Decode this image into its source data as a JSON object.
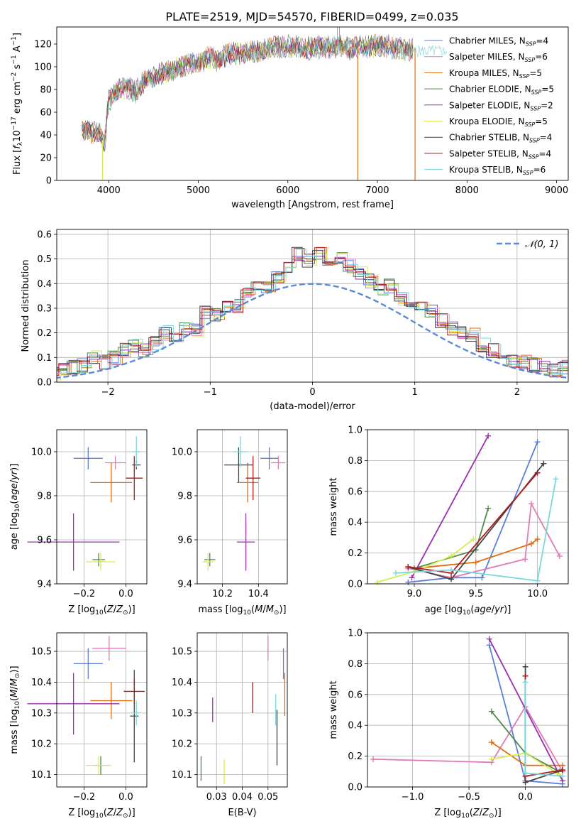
{
  "figure_title": "PLATE=2519, MJD=54570, FIBERID=0499, z=0.035",
  "colors": {
    "Chabrier MILES": "#5b7fd6",
    "Salpeter MILES": "#e07bb5",
    "Kroupa MILES": "#e06d10",
    "Chabrier ELODIE": "#4e8a4a",
    "Salpeter ELODIE": "#9b2fb0",
    "Kroupa ELODIE": "#d5ec55",
    "Chabrier STELIB": "#444444",
    "Salpeter STELIB": "#b01a1a",
    "Kroupa STELIB": "#7ad8dd",
    "normal": "#5b8ad6"
  },
  "chart_data": [
    {
      "id": "spectrum",
      "type": "line",
      "title": "PLATE=2519, MJD=54570, FIBERID=0499, z=0.035",
      "xlabel": "wavelength [Angstrom, rest frame]",
      "ylabel": "Flux [f_λ 10^-17 erg cm^-2 s^-1 A^-1]",
      "xlim": [
        3420,
        9130
      ],
      "ylim": [
        0,
        135
      ],
      "xticks": [
        "4000",
        "5000",
        "6000",
        "7000",
        "8000",
        "9000"
      ],
      "yticks": [
        "0",
        "20",
        "40",
        "60",
        "80",
        "100",
        "120"
      ],
      "legend": "right",
      "series": [
        {
          "name": "Chabrier MILES, N_SSP=4"
        },
        {
          "name": "Salpeter MILES, N_SSP=6"
        },
        {
          "name": "Kroupa MILES, N_SSP=5"
        },
        {
          "name": "Chabrier ELODIE, N_SSP=5"
        },
        {
          "name": "Salpeter ELODIE, N_SSP=2"
        },
        {
          "name": "Kroupa ELODIE, N_SSP=5"
        },
        {
          "name": "Chabrier STELIB, N_SSP=4"
        },
        {
          "name": "Salpeter STELIB, N_SSP=4"
        },
        {
          "name": "Kroupa STELIB, N_SSP=6"
        }
      ],
      "continuum": {
        "x": [
          3700,
          3800,
          3900,
          3950,
          4000,
          4100,
          4200,
          4300,
          4400,
          4500,
          4600,
          4700,
          4800,
          4900,
          5000,
          5100,
          5200,
          5300,
          5400,
          5500,
          5600,
          5700,
          5800,
          5900,
          6000,
          6100,
          6200,
          6300,
          6400,
          6500,
          6600,
          6700,
          6800,
          6900,
          7000,
          7100,
          7200,
          7300,
          7400
        ],
        "y": [
          45,
          42,
          44,
          30,
          70,
          80,
          82,
          78,
          88,
          90,
          95,
          96,
          100,
          102,
          104,
          108,
          106,
          110,
          112,
          112,
          113,
          114,
          116,
          117,
          118,
          117,
          116,
          117,
          118,
          117,
          118,
          116,
          117,
          118,
          119,
          118,
          116,
          115,
          116
        ]
      },
      "dropouts": [
        3930,
        6780,
        7420
      ],
      "halpha_peak": {
        "x": 6563,
        "y": 140
      }
    },
    {
      "id": "residuals",
      "type": "bar",
      "xlabel": "(data-model)/error",
      "ylabel": "Normed distribution",
      "xlim": [
        -2.5,
        2.5
      ],
      "ylim": [
        0,
        0.62
      ],
      "xticks": [
        "−2",
        "−1",
        "0",
        "1",
        "2"
      ],
      "yticks": [
        "0.0",
        "0.1",
        "0.2",
        "0.3",
        "0.4",
        "0.5",
        "0.6"
      ],
      "legend_label": "N(0,1)",
      "legend": "top-right",
      "bin_width": 0.1,
      "envelope": [
        0.02,
        0.03,
        0.04,
        0.05,
        0.03,
        0.05,
        0.06,
        0.07,
        0.1,
        0.08,
        0.1,
        0.13,
        0.15,
        0.13,
        0.16,
        0.2,
        0.18,
        0.22,
        0.21,
        0.28,
        0.27,
        0.3,
        0.31,
        0.37,
        0.4,
        0.38,
        0.42,
        0.47,
        0.52,
        0.49,
        0.52,
        0.5,
        0.51,
        0.47,
        0.44,
        0.41,
        0.37,
        0.39,
        0.34,
        0.3,
        0.32,
        0.29,
        0.25,
        0.22,
        0.2,
        0.19,
        0.15,
        0.13,
        0.11,
        0.09,
        0.08,
        0.07,
        0.06,
        0.05,
        0.06,
        0.05,
        0.04,
        0.04,
        0.03,
        0.03
      ]
    },
    {
      "id": "age_vs_Z",
      "type": "scatter",
      "xlabel": "Z [log10(Z/Z☉)]",
      "ylabel": "age [log10(age/yr)]",
      "xlim": [
        -0.33,
        0.1
      ],
      "ylim": [
        9.4,
        10.1
      ],
      "xticks": [
        "−0.2",
        "0.0"
      ],
      "yticks": [
        "9.4",
        "9.6",
        "9.8",
        "10.0"
      ],
      "points": [
        {
          "model": "Chabrier MILES",
          "x": -0.18,
          "xe": 0.07,
          "y": 9.97,
          "ye": 0.05
        },
        {
          "model": "Salpeter MILES",
          "x": -0.05,
          "xe": 0.05,
          "y": 9.95,
          "ye": 0.03
        },
        {
          "model": "Kroupa MILES",
          "x": -0.07,
          "xe": 0.1,
          "y": 9.86,
          "ye": 0.09
        },
        {
          "model": "Chabrier ELODIE",
          "x": -0.13,
          "xe": 0.03,
          "y": 9.51,
          "ye": 0.03
        },
        {
          "model": "Salpeter ELODIE",
          "x": -0.25,
          "xe": 0.22,
          "y": 9.59,
          "ye": 0.13
        },
        {
          "model": "Kroupa ELODIE",
          "x": -0.12,
          "xe": 0.07,
          "y": 9.5,
          "ye": 0.04
        },
        {
          "model": "Chabrier STELIB",
          "x": 0.05,
          "xe": 0.02,
          "y": 9.94,
          "ye": 0.02
        },
        {
          "model": "Salpeter STELIB",
          "x": 0.04,
          "xe": 0.04,
          "y": 9.88,
          "ye": 0.1
        },
        {
          "model": "Kroupa STELIB",
          "x": 0.05,
          "xe": 0.02,
          "y": 10.0,
          "ye": 0.07
        }
      ]
    },
    {
      "id": "age_vs_mass",
      "type": "scatter",
      "xlabel": "mass [log10(M/M☉)]",
      "xlim": [
        10.06,
        10.56
      ],
      "ylim": [
        9.4,
        10.1
      ],
      "xticks": [
        "10.2",
        "10.4"
      ],
      "yticks": [
        "9.4",
        "9.6",
        "9.8",
        "10.0"
      ],
      "points": [
        {
          "model": "Chabrier MILES",
          "x": 10.46,
          "xe": 0.05,
          "y": 9.97,
          "ye": 0.05
        },
        {
          "model": "Salpeter MILES",
          "x": 10.51,
          "xe": 0.04,
          "y": 9.95,
          "ye": 0.03
        },
        {
          "model": "Kroupa MILES",
          "x": 10.34,
          "xe": 0.06,
          "y": 9.86,
          "ye": 0.09
        },
        {
          "model": "Chabrier ELODIE",
          "x": 10.13,
          "xe": 0.03,
          "y": 9.51,
          "ye": 0.03
        },
        {
          "model": "Salpeter ELODIE",
          "x": 10.33,
          "xe": 0.05,
          "y": 9.59,
          "ye": 0.13
        },
        {
          "model": "Kroupa ELODIE",
          "x": 10.12,
          "xe": 0.03,
          "y": 9.5,
          "ye": 0.04
        },
        {
          "model": "Chabrier STELIB",
          "x": 10.29,
          "xe": 0.08,
          "y": 9.94,
          "ye": 0.08
        },
        {
          "model": "Salpeter STELIB",
          "x": 10.37,
          "xe": 0.04,
          "y": 9.88,
          "ye": 0.1
        },
        {
          "model": "Kroupa STELIB",
          "x": 10.3,
          "xe": 0.04,
          "y": 10.0,
          "ye": 0.07
        }
      ]
    },
    {
      "id": "weight_vs_age",
      "type": "line",
      "xlabel": "age [log10(age/yr)]",
      "ylabel": "mass weight",
      "xlim": [
        8.62,
        10.25
      ],
      "ylim": [
        0,
        1.0
      ],
      "xticks": [
        "9.0",
        "9.5",
        "10.0"
      ],
      "yticks": [
        "0.0",
        "0.2",
        "0.4",
        "0.6",
        "0.8",
        "1.0"
      ],
      "series": [
        {
          "model": "Chabrier MILES",
          "x": [
            8.95,
            9.3,
            9.55,
            10.0
          ],
          "y": [
            0.01,
            0.04,
            0.04,
            0.92
          ]
        },
        {
          "model": "Salpeter MILES",
          "x": [
            8.95,
            9.3,
            9.9,
            9.95,
            10.18
          ],
          "y": [
            0.1,
            0.04,
            0.16,
            0.52,
            0.18
          ]
        },
        {
          "model": "Kroupa MILES",
          "x": [
            9.0,
            9.5,
            9.95,
            10.0
          ],
          "y": [
            0.1,
            0.14,
            0.26,
            0.29
          ]
        },
        {
          "model": "Chabrier ELODIE",
          "x": [
            9.0,
            9.5,
            9.6
          ],
          "y": [
            0.1,
            0.22,
            0.49
          ]
        },
        {
          "model": "Salpeter ELODIE",
          "x": [
            8.98,
            9.6
          ],
          "y": [
            0.04,
            0.96
          ]
        },
        {
          "model": "Kroupa ELODIE",
          "x": [
            8.7,
            9.0,
            9.3,
            9.48
          ],
          "y": [
            0.01,
            0.08,
            0.18,
            0.29
          ]
        },
        {
          "model": "Chabrier STELIB",
          "x": [
            8.95,
            9.3,
            10.05
          ],
          "y": [
            0.11,
            0.03,
            0.78
          ]
        },
        {
          "model": "Salpeter STELIB",
          "x": [
            8.95,
            9.3,
            10.0
          ],
          "y": [
            0.11,
            0.07,
            0.72
          ]
        },
        {
          "model": "Kroupa STELIB",
          "x": [
            8.85,
            9.3,
            10.0,
            10.15
          ],
          "y": [
            0.07,
            0.09,
            0.02,
            0.68
          ]
        }
      ]
    },
    {
      "id": "mass_vs_Z",
      "type": "scatter",
      "xlabel": "Z [log10(Z/Z☉)]",
      "ylabel": "mass [log10(M/M☉)]",
      "xlim": [
        -0.33,
        0.1
      ],
      "ylim": [
        10.06,
        10.56
      ],
      "xticks": [
        "−0.2",
        "0.0"
      ],
      "yticks": [
        "10.1",
        "10.2",
        "10.3",
        "10.4",
        "10.5"
      ],
      "points": [
        {
          "model": "Chabrier MILES",
          "x": -0.18,
          "xe": 0.07,
          "y": 10.46,
          "ye": 0.05
        },
        {
          "model": "Salpeter MILES",
          "x": -0.08,
          "xe": 0.08,
          "y": 10.51,
          "ye": 0.04
        },
        {
          "model": "Kroupa MILES",
          "x": -0.07,
          "xe": 0.1,
          "y": 10.34,
          "ye": 0.06
        },
        {
          "model": "Chabrier ELODIE",
          "x": -0.12,
          "xe": 0.03,
          "y": 10.13,
          "ye": 0.03
        },
        {
          "model": "Salpeter ELODIE",
          "x": -0.25,
          "xe": 0.22,
          "y": 10.33,
          "ye": 0.1
        },
        {
          "model": "Kroupa ELODIE",
          "x": -0.13,
          "xe": 0.06,
          "y": 10.13,
          "ye": 0.03
        },
        {
          "model": "Chabrier STELIB",
          "x": 0.04,
          "xe": 0.02,
          "y": 10.29,
          "ye": 0.15
        },
        {
          "model": "Salpeter STELIB",
          "x": 0.04,
          "xe": 0.05,
          "y": 10.37,
          "ye": 0.04
        },
        {
          "model": "Kroupa STELIB",
          "x": 0.05,
          "xe": 0.02,
          "y": 10.3,
          "ye": 0.04
        }
      ]
    },
    {
      "id": "mass_vs_ebv",
      "type": "scatter",
      "xlabel": "E(B-V)",
      "xlim": [
        0.0225,
        0.0575
      ],
      "ylim": [
        10.06,
        10.56
      ],
      "xticks": [
        "0.03",
        "0.04",
        "0.05"
      ],
      "yticks": [
        "10.1",
        "10.2",
        "10.3",
        "10.4",
        "10.5"
      ],
      "points": [
        {
          "model": "Chabrier MILES",
          "x": 0.056,
          "y": 10.46,
          "ye": 0.05
        },
        {
          "model": "Salpeter MILES",
          "x": 0.05,
          "y": 10.51,
          "ye": 0.04
        },
        {
          "model": "Kroupa MILES",
          "x": 0.0565,
          "y": 10.36,
          "ye": 0.07
        },
        {
          "model": "Chabrier ELODIE",
          "x": 0.024,
          "y": 10.12,
          "ye": 0.04
        },
        {
          "model": "Salpeter ELODIE",
          "x": 0.0285,
          "y": 10.31,
          "ye": 0.04
        },
        {
          "model": "Kroupa ELODIE",
          "x": 0.033,
          "y": 10.11,
          "ye": 0.04
        },
        {
          "model": "Chabrier STELIB",
          "x": 0.0535,
          "y": 10.22,
          "ye": 0.09
        },
        {
          "model": "Salpeter STELIB",
          "x": 0.044,
          "y": 10.35,
          "ye": 0.05
        },
        {
          "model": "Kroupa STELIB",
          "x": 0.053,
          "y": 10.31,
          "ye": 0.05
        }
      ]
    },
    {
      "id": "weight_vs_Z",
      "type": "line",
      "xlabel": "Z [log10(Z/Z☉)]",
      "ylabel": "mass weight",
      "xlim": [
        -1.4,
        0.38
      ],
      "ylim": [
        0,
        1.0
      ],
      "xticks": [
        "−1.0",
        "−0.5",
        "0.0"
      ],
      "yticks": [
        "0.0",
        "0.2",
        "0.4",
        "0.6",
        "0.8",
        "1.0"
      ],
      "series": [
        {
          "model": "Chabrier MILES",
          "x": [
            -0.32,
            0.0,
            0.33
          ],
          "y": [
            0.92,
            0.04,
            0.02
          ]
        },
        {
          "model": "Salpeter MILES",
          "x": [
            -1.35,
            -0.3,
            0.0,
            0.33
          ],
          "y": [
            0.18,
            0.16,
            0.52,
            0.1
          ]
        },
        {
          "model": "Kroupa MILES",
          "x": [
            -0.3,
            0.0,
            0.33
          ],
          "y": [
            0.29,
            0.14,
            0.14
          ]
        },
        {
          "model": "Chabrier ELODIE",
          "x": [
            -0.3,
            0.0,
            0.3
          ],
          "y": [
            0.49,
            0.22,
            0.1
          ]
        },
        {
          "model": "Salpeter ELODIE",
          "x": [
            -0.32,
            0.33
          ],
          "y": [
            0.96,
            0.04
          ]
        },
        {
          "model": "Kroupa ELODIE",
          "x": [
            -0.3,
            0.0,
            0.3
          ],
          "y": [
            0.18,
            0.22,
            0.08
          ]
        },
        {
          "model": "Chabrier STELIB",
          "x": [
            0.0,
            0.0,
            0.33
          ],
          "y": [
            0.78,
            0.03,
            0.11
          ]
        },
        {
          "model": "Salpeter STELIB",
          "x": [
            0.0,
            0.0,
            0.33
          ],
          "y": [
            0.72,
            0.07,
            0.11
          ]
        },
        {
          "model": "Kroupa STELIB",
          "x": [
            0.0,
            0.0,
            0.33
          ],
          "y": [
            0.68,
            0.09,
            0.07
          ]
        }
      ]
    }
  ]
}
